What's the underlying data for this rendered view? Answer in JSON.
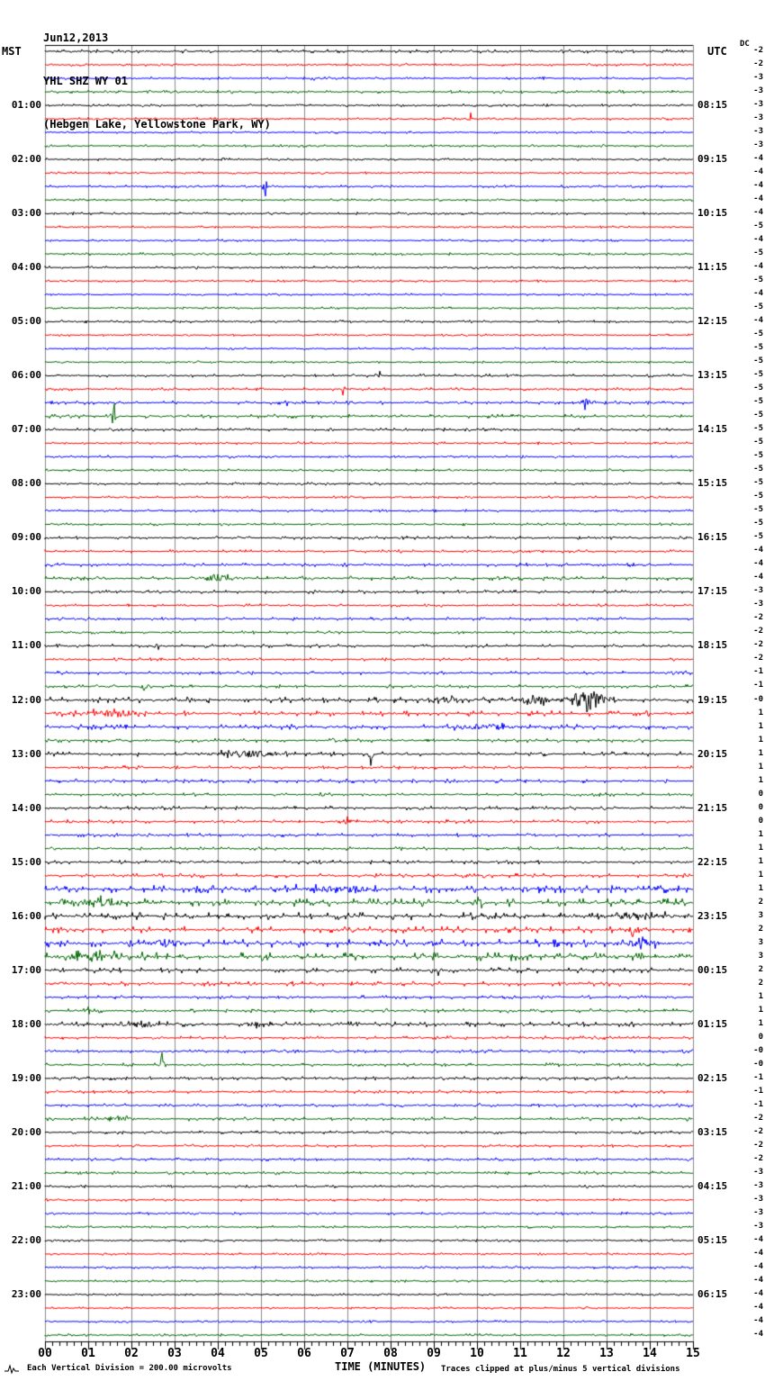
{
  "header": {
    "date": "Jun12,2013",
    "station": "YHL SHZ WY 01",
    "location": "(Hebgen Lake, Yellowstone Park, WY)"
  },
  "corner_labels": {
    "left": "MST",
    "right": "UTC",
    "dc": "DC"
  },
  "x_axis": {
    "title": "TIME (MINUTES)",
    "tick_labels": [
      "00",
      "01",
      "02",
      "03",
      "04",
      "05",
      "06",
      "07",
      "08",
      "09",
      "10",
      "11",
      "12",
      "13",
      "14",
      "15"
    ]
  },
  "footer": {
    "left": "Each Vertical Division =  200.00 microvolts",
    "right": "Traces clipped at plus/minus 5 vertical divisions"
  },
  "colors": {
    "background": "#ffffff",
    "grid": "#8c8c8c",
    "axis": "#000000",
    "trace_black": "#000000",
    "trace_red": "#ff0000",
    "trace_blue": "#0000ff",
    "trace_green": "#006600"
  },
  "chart_data": {
    "type": "line",
    "subtype": "helicorder",
    "title": "YHL SHZ WY 01 webicorder, Jun12,2013",
    "xlabel": "TIME (MINUTES)",
    "x_range": [
      0,
      15
    ],
    "minutes_per_row": 15,
    "grid": true,
    "trace_color_cycle": [
      "#000000",
      "#ff0000",
      "#0000ff",
      "#006600"
    ],
    "rows_note": "96 rows of 15 min each starting 00:00 MST; ml=left MST hour label, rl=right UTC end label, dc=DC offset text at right edge, n=background noise amplitude (px), e=events [minute, amplitude_px, width_min]",
    "rows": [
      {
        "dc": "-2",
        "n": 1.0
      },
      {
        "dc": "-2",
        "n": 0.8
      },
      {
        "dc": "-3",
        "n": 0.8,
        "e": [
          [
            6.2,
            3,
            0.05
          ]
        ]
      },
      {
        "dc": "-3",
        "n": 0.9
      },
      {
        "dc": "-3",
        "n": 0.8,
        "ml": "01:00",
        "rl": "08:15"
      },
      {
        "dc": "-3",
        "n": 0.8,
        "e": [
          [
            9.85,
            4,
            0.05
          ]
        ]
      },
      {
        "dc": "-3",
        "n": 0.7
      },
      {
        "dc": "-3",
        "n": 0.8
      },
      {
        "dc": "-4",
        "n": 0.8,
        "ml": "02:00",
        "rl": "09:15"
      },
      {
        "dc": "-4",
        "n": 0.7
      },
      {
        "dc": "-4",
        "n": 0.8,
        "e": [
          [
            5.1,
            6,
            0.1
          ]
        ]
      },
      {
        "dc": "-4",
        "n": 0.8
      },
      {
        "dc": "-4",
        "n": 0.8,
        "ml": "03:00",
        "rl": "10:15"
      },
      {
        "dc": "-5",
        "n": 0.7
      },
      {
        "dc": "-4",
        "n": 0.7
      },
      {
        "dc": "-5",
        "n": 0.8
      },
      {
        "dc": "-4",
        "n": 0.8,
        "ml": "04:00",
        "rl": "11:15"
      },
      {
        "dc": "-5",
        "n": 0.7
      },
      {
        "dc": "-4",
        "n": 0.7
      },
      {
        "dc": "-5",
        "n": 0.7
      },
      {
        "dc": "-4",
        "n": 0.8,
        "ml": "05:00",
        "rl": "12:15"
      },
      {
        "dc": "-5",
        "n": 0.7
      },
      {
        "dc": "-5",
        "n": 0.7
      },
      {
        "dc": "-5",
        "n": 0.7
      },
      {
        "dc": "-5",
        "n": 0.9,
        "ml": "06:00",
        "rl": "13:15",
        "e": [
          [
            7.75,
            3,
            0.05
          ]
        ]
      },
      {
        "dc": "-5",
        "n": 0.9,
        "e": [
          [
            6.9,
            5,
            0.06
          ]
        ]
      },
      {
        "dc": "-5",
        "n": 1.0,
        "e": [
          [
            5.6,
            2,
            0.05
          ],
          [
            12.5,
            5,
            0.15
          ]
        ]
      },
      {
        "dc": "-5",
        "n": 1.1,
        "e": [
          [
            1.6,
            13,
            0.06
          ]
        ]
      },
      {
        "dc": "-5",
        "n": 0.9,
        "ml": "07:00",
        "rl": "14:15"
      },
      {
        "dc": "-5",
        "n": 0.8
      },
      {
        "dc": "-5",
        "n": 0.8
      },
      {
        "dc": "-5",
        "n": 0.8
      },
      {
        "dc": "-5",
        "n": 0.8,
        "ml": "08:00",
        "rl": "15:15"
      },
      {
        "dc": "-5",
        "n": 0.8
      },
      {
        "dc": "-5",
        "n": 0.8
      },
      {
        "dc": "-5",
        "n": 0.8
      },
      {
        "dc": "-5",
        "n": 0.9,
        "ml": "09:00",
        "rl": "16:15"
      },
      {
        "dc": "-4",
        "n": 0.9
      },
      {
        "dc": "-4",
        "n": 1.0
      },
      {
        "dc": "-4",
        "n": 1.2,
        "e": [
          [
            4.0,
            4,
            0.45
          ],
          [
            12.0,
            2.5,
            0.2
          ]
        ]
      },
      {
        "dc": "-3",
        "n": 1.0,
        "ml": "10:00",
        "rl": "17:15"
      },
      {
        "dc": "-3",
        "n": 0.9
      },
      {
        "dc": "-2",
        "n": 0.9
      },
      {
        "dc": "-2",
        "n": 0.9
      },
      {
        "dc": "-2",
        "n": 1.0,
        "ml": "11:00",
        "rl": "18:15",
        "e": [
          [
            2.6,
            2.5,
            0.1
          ]
        ]
      },
      {
        "dc": "-2",
        "n": 0.9
      },
      {
        "dc": "-1",
        "n": 1.0,
        "e": [
          [
            14.6,
            3,
            0.25
          ]
        ]
      },
      {
        "dc": "-1",
        "n": 1.0,
        "e": [
          [
            2.3,
            3,
            0.08
          ]
        ]
      },
      {
        "dc": "-0",
        "n": 1.6,
        "ml": "12:00",
        "rl": "19:15",
        "e": [
          [
            9.3,
            3,
            0.3
          ],
          [
            11.3,
            5,
            0.4
          ],
          [
            12.55,
            11,
            0.45
          ]
        ]
      },
      {
        "dc": "1",
        "n": 1.5,
        "e": [
          [
            0.4,
            3,
            0.2
          ],
          [
            1.6,
            4,
            0.6
          ]
        ]
      },
      {
        "dc": "1",
        "n": 1.4,
        "e": [
          [
            10.3,
            3,
            0.9
          ]
        ]
      },
      {
        "dc": "1",
        "n": 1.1
      },
      {
        "dc": "1",
        "n": 1.3,
        "ml": "13:00",
        "rl": "20:15",
        "e": [
          [
            4.7,
            4,
            0.7
          ],
          [
            7.55,
            7,
            0.08
          ]
        ]
      },
      {
        "dc": "1",
        "n": 1.0
      },
      {
        "dc": "1",
        "n": 1.1
      },
      {
        "dc": "0",
        "n": 1.0,
        "e": [
          [
            6.4,
            3,
            0.07
          ]
        ]
      },
      {
        "dc": "0",
        "n": 1.1,
        "ml": "14:00",
        "rl": "21:15"
      },
      {
        "dc": "0",
        "n": 1.1,
        "e": [
          [
            7.0,
            3,
            0.2
          ]
        ]
      },
      {
        "dc": "1",
        "n": 1.0
      },
      {
        "dc": "1",
        "n": 1.0
      },
      {
        "dc": "1",
        "n": 1.1,
        "ml": "15:00",
        "rl": "22:15"
      },
      {
        "dc": "1",
        "n": 1.2
      },
      {
        "dc": "1",
        "n": 2.0,
        "e": [
          [
            6.8,
            3,
            1.2
          ],
          [
            11.2,
            4,
            0.15
          ]
        ]
      },
      {
        "dc": "2",
        "n": 2.2,
        "e": [
          [
            1.3,
            4,
            0.5
          ],
          [
            10.0,
            3,
            0.2
          ]
        ]
      },
      {
        "dc": "3",
        "n": 2.0,
        "ml": "16:00",
        "rl": "23:15",
        "e": [
          [
            13.9,
            4,
            0.5
          ]
        ]
      },
      {
        "dc": "2",
        "n": 1.8,
        "e": [
          [
            13.6,
            4,
            0.3
          ]
        ]
      },
      {
        "dc": "3",
        "n": 2.2,
        "e": [
          [
            2.8,
            4,
            0.4
          ],
          [
            9.0,
            3,
            0.3
          ],
          [
            13.8,
            4,
            0.4
          ]
        ]
      },
      {
        "dc": "3",
        "n": 2.2,
        "e": [
          [
            1.2,
            4,
            0.8
          ]
        ]
      },
      {
        "dc": "2",
        "n": 1.5,
        "ml": "17:00",
        "rl": "00:15",
        "e": [
          [
            9.1,
            3,
            0.15
          ]
        ]
      },
      {
        "dc": "2",
        "n": 1.3
      },
      {
        "dc": "1",
        "n": 1.0
      },
      {
        "dc": "1",
        "n": 1.1,
        "e": [
          [
            1.0,
            5,
            0.05
          ]
        ]
      },
      {
        "dc": "1",
        "n": 1.4,
        "ml": "18:00",
        "rl": "01:15",
        "e": [
          [
            2.1,
            4,
            0.5
          ],
          [
            4.9,
            3,
            0.3
          ]
        ]
      },
      {
        "dc": "0",
        "n": 1.0
      },
      {
        "dc": "-0",
        "n": 0.9
      },
      {
        "dc": "-0",
        "n": 1.0,
        "e": [
          [
            2.7,
            13,
            0.05
          ]
        ]
      },
      {
        "dc": "-1",
        "n": 1.0,
        "ml": "19:00",
        "rl": "02:15"
      },
      {
        "dc": "-1",
        "n": 0.9
      },
      {
        "dc": "-1",
        "n": 1.0
      },
      {
        "dc": "-2",
        "n": 1.1,
        "e": [
          [
            1.8,
            3,
            0.25
          ]
        ]
      },
      {
        "dc": "-2",
        "n": 0.9,
        "ml": "20:00",
        "rl": "03:15"
      },
      {
        "dc": "-2",
        "n": 0.9
      },
      {
        "dc": "-2",
        "n": 0.9
      },
      {
        "dc": "-3",
        "n": 1.0
      },
      {
        "dc": "-3",
        "n": 0.8,
        "ml": "21:00",
        "rl": "04:15"
      },
      {
        "dc": "-3",
        "n": 0.8
      },
      {
        "dc": "-3",
        "n": 0.8
      },
      {
        "dc": "-3",
        "n": 0.8
      },
      {
        "dc": "-4",
        "n": 0.8,
        "ml": "22:00",
        "rl": "05:15"
      },
      {
        "dc": "-4",
        "n": 0.7
      },
      {
        "dc": "-4",
        "n": 0.8
      },
      {
        "dc": "-4",
        "n": 0.7
      },
      {
        "dc": "-4",
        "n": 0.7,
        "ml": "23:00",
        "rl": "06:15"
      },
      {
        "dc": "-4",
        "n": 0.7
      },
      {
        "dc": "-4",
        "n": 0.7
      },
      {
        "dc": "-4",
        "n": 0.8
      }
    ]
  }
}
